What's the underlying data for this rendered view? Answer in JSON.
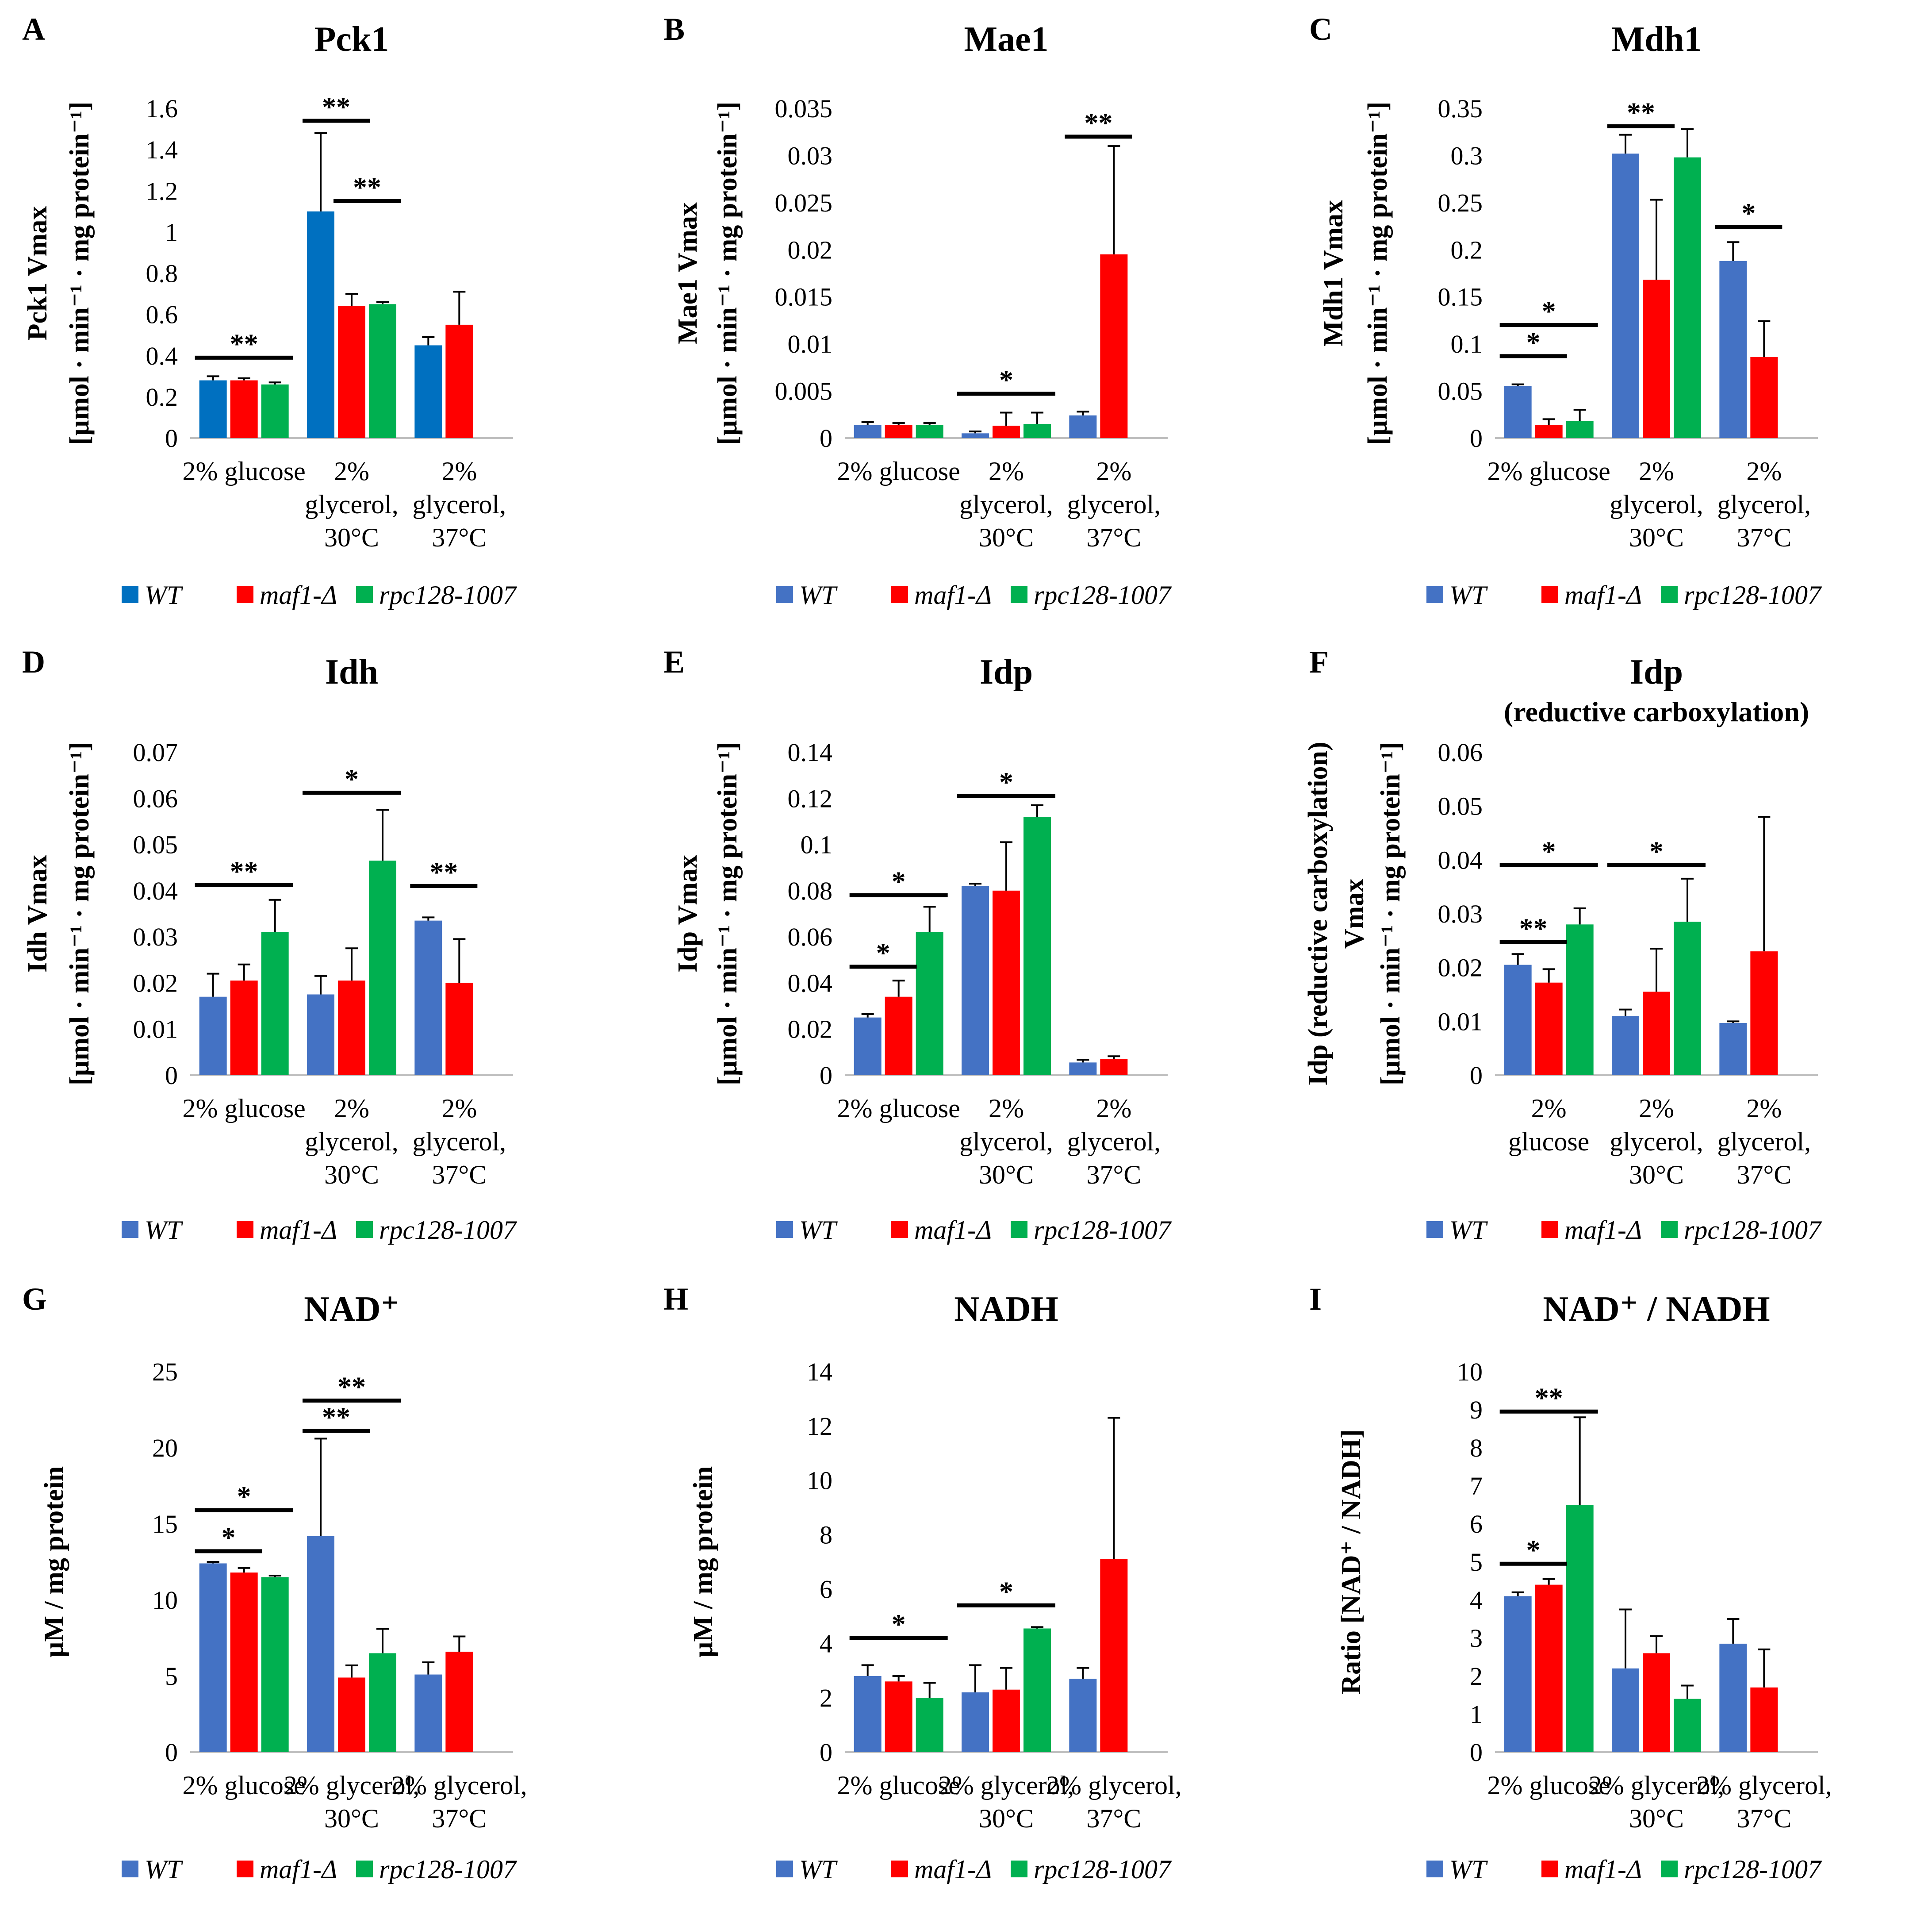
{
  "colors": {
    "WT_blue_A": "#0070c0",
    "WT": "#4472c4",
    "maf1": "#ff0000",
    "rpc128": "#00b050",
    "axis": "#bfbfbf",
    "sig": "#000000"
  },
  "legend": {
    "labels": [
      "WT",
      "maf1-Δ",
      "rpc128-1007"
    ]
  },
  "chart_data": [
    {
      "id": "A",
      "letter": "A",
      "type": "bar",
      "title": "Pck1",
      "subtitle": "",
      "ylabel": [
        "Pck1 Vmax",
        "[µmol · min⁻¹ · mg protein⁻¹]"
      ],
      "ylim": [
        0,
        1.6
      ],
      "yticks": [
        0,
        0.2,
        0.4,
        0.6,
        0.8,
        1,
        1.2,
        1.4,
        1.6
      ],
      "ytick_labels": [
        "0",
        "0.2",
        "0.4",
        "0.6",
        "0.8",
        "1",
        "1.2",
        "1.4",
        "1.6"
      ],
      "categories": [
        [
          "2% glucose"
        ],
        [
          "2%",
          "glycerol,",
          "30°C"
        ],
        [
          "2%",
          "glycerol,",
          "37°C"
        ]
      ],
      "series": [
        {
          "name": "WT",
          "color": "#0070c0",
          "values": [
            0.28,
            1.1,
            0.45
          ],
          "errors": [
            0.02,
            0.38,
            0.04
          ]
        },
        {
          "name": "maf1-Δ",
          "color": "#ff0000",
          "values": [
            0.28,
            0.64,
            0.55
          ],
          "errors": [
            0.01,
            0.06,
            0.16
          ]
        },
        {
          "name": "rpc128-1007",
          "color": "#00b050",
          "values": [
            0.26,
            0.65,
            null
          ],
          "errors": [
            0.01,
            0.01,
            null
          ]
        }
      ],
      "significance": [
        {
          "group": 0,
          "from": 0,
          "to": 2,
          "y": 0.39,
          "label": "**"
        },
        {
          "group": 1,
          "from": 0,
          "to": 1,
          "y": 1.54,
          "label": "**"
        },
        {
          "group": 1,
          "from": 1,
          "to": 2,
          "y": 1.15,
          "label": "**"
        }
      ]
    },
    {
      "id": "B",
      "letter": "B",
      "type": "bar",
      "title": "Mae1",
      "subtitle": "",
      "ylabel": [
        "Mae1 Vmax",
        "[µmol · min⁻¹ · mg protein⁻¹]"
      ],
      "ylim": [
        0,
        0.035
      ],
      "yticks": [
        0,
        0.005,
        0.01,
        0.015,
        0.02,
        0.025,
        0.03,
        0.035
      ],
      "ytick_labels": [
        "0",
        "0.005",
        "0.01",
        "0.015",
        "0.02",
        "0.025",
        "0.03",
        "0.035"
      ],
      "categories": [
        [
          "2% glucose"
        ],
        [
          "2%",
          "glycerol,",
          "30°C"
        ],
        [
          "2%",
          "glycerol,",
          "37°C"
        ]
      ],
      "series": [
        {
          "name": "WT",
          "color": "#4472c4",
          "values": [
            0.0014,
            0.0005,
            0.0024
          ],
          "errors": [
            0.0003,
            0.0002,
            0.0004
          ]
        },
        {
          "name": "maf1-Δ",
          "color": "#ff0000",
          "values": [
            0.0014,
            0.0013,
            0.0195
          ],
          "errors": [
            0.0002,
            0.0014,
            0.0115
          ]
        },
        {
          "name": "rpc128-1007",
          "color": "#00b050",
          "values": [
            0.0014,
            0.0015,
            null
          ],
          "errors": [
            0.0002,
            0.0012,
            null
          ]
        }
      ],
      "significance": [
        {
          "group": 1,
          "from": 0,
          "to": 2,
          "y": 0.0047,
          "label": "*"
        },
        {
          "group": 2,
          "from": 0,
          "to": 1,
          "y": 0.032,
          "label": "**"
        }
      ]
    },
    {
      "id": "C",
      "letter": "C",
      "type": "bar",
      "title": "Mdh1",
      "subtitle": "",
      "ylabel": [
        "Mdh1 Vmax",
        "[µmol · min⁻¹ · mg protein⁻¹]"
      ],
      "ylim": [
        0,
        0.35
      ],
      "yticks": [
        0,
        0.05,
        0.1,
        0.15,
        0.2,
        0.25,
        0.3,
        0.35
      ],
      "ytick_labels": [
        "0",
        "0.05",
        "0.1",
        "0.15",
        "0.2",
        "0.25",
        "0.3",
        "0.35"
      ],
      "categories": [
        [
          "2% glucose"
        ],
        [
          "2%",
          "glycerol,",
          "30°C"
        ],
        [
          "2%",
          "glycerol,",
          "37°C"
        ]
      ],
      "series": [
        {
          "name": "WT",
          "color": "#4472c4",
          "values": [
            0.055,
            0.302,
            0.188
          ],
          "errors": [
            0.002,
            0.02,
            0.02
          ]
        },
        {
          "name": "maf1-Δ",
          "color": "#ff0000",
          "values": [
            0.014,
            0.168,
            0.086
          ],
          "errors": [
            0.006,
            0.085,
            0.038
          ]
        },
        {
          "name": "rpc128-1007",
          "color": "#00b050",
          "values": [
            0.018,
            0.298,
            null
          ],
          "errors": [
            0.012,
            0.03,
            null
          ]
        }
      ],
      "significance": [
        {
          "group": 0,
          "from": 0,
          "to": 1,
          "y": 0.087,
          "label": "*"
        },
        {
          "group": 0,
          "from": 0,
          "to": 2,
          "y": 0.12,
          "label": "*"
        },
        {
          "group": 1,
          "from": 0,
          "to": 1,
          "y": 0.331,
          "label": "**"
        },
        {
          "group": 2,
          "from": 0,
          "to": 1,
          "y": 0.224,
          "label": "*"
        }
      ]
    },
    {
      "id": "D",
      "letter": "D",
      "type": "bar",
      "title": "Idh",
      "subtitle": "",
      "ylabel": [
        "Idh Vmax",
        "[µmol · min⁻¹ · mg protein⁻¹]"
      ],
      "ylim": [
        0,
        0.07
      ],
      "yticks": [
        0,
        0.01,
        0.02,
        0.03,
        0.04,
        0.05,
        0.06,
        0.07
      ],
      "ytick_labels": [
        "0",
        "0.01",
        "0.02",
        "0.03",
        "0.04",
        "0.05",
        "0.06",
        "0.07"
      ],
      "categories": [
        [
          "2% glucose"
        ],
        [
          "2%",
          "glycerol,",
          "30°C"
        ],
        [
          "2%",
          "glycerol,",
          "37°C"
        ]
      ],
      "series": [
        {
          "name": "WT",
          "color": "#4472c4",
          "values": [
            0.017,
            0.0175,
            0.0335
          ],
          "errors": [
            0.005,
            0.004,
            0.0007
          ]
        },
        {
          "name": "maf1-Δ",
          "color": "#ff0000",
          "values": [
            0.0205,
            0.0205,
            0.02
          ],
          "errors": [
            0.0035,
            0.007,
            0.0095
          ]
        },
        {
          "name": "rpc128-1007",
          "color": "#00b050",
          "values": [
            0.031,
            0.0465,
            null
          ],
          "errors": [
            0.007,
            0.011,
            null
          ]
        }
      ],
      "significance": [
        {
          "group": 0,
          "from": 0,
          "to": 2,
          "y": 0.0412,
          "label": "**"
        },
        {
          "group": 1,
          "from": 0,
          "to": 2,
          "y": 0.0612,
          "label": "*"
        },
        {
          "group": 2,
          "from": 0,
          "to": 1,
          "y": 0.041,
          "label": "**"
        }
      ]
    },
    {
      "id": "E",
      "letter": "E",
      "type": "bar",
      "title": "Idp",
      "subtitle": "",
      "ylabel": [
        "Idp Vmax",
        "[µmol · min⁻¹ · mg protein⁻¹]"
      ],
      "ylim": [
        0,
        0.14
      ],
      "yticks": [
        0,
        0.02,
        0.04,
        0.06,
        0.08,
        0.1,
        0.12,
        0.14
      ],
      "ytick_labels": [
        "0",
        "0.02",
        "0.04",
        "0.06",
        "0.08",
        "0.1",
        "0.12",
        "0.14"
      ],
      "categories": [
        [
          "2% glucose"
        ],
        [
          "2%",
          "glycerol,",
          "30°C"
        ],
        [
          "2%",
          "glycerol,",
          "37°C"
        ]
      ],
      "series": [
        {
          "name": "WT",
          "color": "#4472c4",
          "values": [
            0.025,
            0.082,
            0.0055
          ],
          "errors": [
            0.0015,
            0.001,
            0.0012
          ]
        },
        {
          "name": "maf1-Δ",
          "color": "#ff0000",
          "values": [
            0.034,
            0.08,
            0.007
          ],
          "errors": [
            0.007,
            0.021,
            0.0012
          ]
        },
        {
          "name": "rpc128-1007",
          "color": "#00b050",
          "values": [
            0.062,
            0.112,
            null
          ],
          "errors": [
            0.011,
            0.005,
            null
          ]
        }
      ],
      "significance": [
        {
          "group": 0,
          "from": 0,
          "to": 1,
          "y": 0.047,
          "label": "*"
        },
        {
          "group": 0,
          "from": 0,
          "to": 2,
          "y": 0.078,
          "label": "*"
        },
        {
          "group": 1,
          "from": 0,
          "to": 2,
          "y": 0.121,
          "label": "*"
        }
      ]
    },
    {
      "id": "F",
      "letter": "F",
      "type": "bar",
      "title": "Idp",
      "subtitle": "(reductive carboxylation)",
      "ylabel": [
        "Idp (reductive carboxylation)",
        "Vmax",
        "[µmol · min⁻¹ · mg protein⁻¹]"
      ],
      "ylim": [
        0,
        0.06
      ],
      "yticks": [
        0,
        0.01,
        0.02,
        0.03,
        0.04,
        0.05,
        0.06
      ],
      "ytick_labels": [
        "0",
        "0.01",
        "0.02",
        "0.03",
        "0.04",
        "0.05",
        "0.06"
      ],
      "categories": [
        [
          "2%",
          "glucose"
        ],
        [
          "2%",
          "glycerol,",
          "30°C"
        ],
        [
          "2%",
          "glycerol,",
          "37°C"
        ]
      ],
      "series": [
        {
          "name": "WT",
          "color": "#4472c4",
          "values": [
            0.0205,
            0.011,
            0.0097
          ],
          "errors": [
            0.002,
            0.0012,
            0.0003
          ]
        },
        {
          "name": "maf1-Δ",
          "color": "#ff0000",
          "values": [
            0.0172,
            0.0155,
            0.023
          ],
          "errors": [
            0.0025,
            0.008,
            0.025
          ]
        },
        {
          "name": "rpc128-1007",
          "color": "#00b050",
          "values": [
            0.028,
            0.0285,
            null
          ],
          "errors": [
            0.003,
            0.008,
            null
          ]
        }
      ],
      "significance": [
        {
          "group": 0,
          "from": 0,
          "to": 1,
          "y": 0.0247,
          "label": "**"
        },
        {
          "group": 0,
          "from": 0,
          "to": 2,
          "y": 0.039,
          "label": "*"
        },
        {
          "group": 1,
          "from": 0,
          "to": 2,
          "y": 0.039,
          "label": "*"
        }
      ]
    },
    {
      "id": "G",
      "letter": "G",
      "type": "bar",
      "title": "NAD⁺",
      "subtitle": "",
      "ylabel": [
        "µM / mg protein"
      ],
      "ylim": [
        0,
        25
      ],
      "yticks": [
        0,
        5,
        10,
        15,
        20,
        25
      ],
      "ytick_labels": [
        "0",
        "5",
        "10",
        "15",
        "20",
        "25"
      ],
      "categories": [
        [
          "2% glucose"
        ],
        [
          "2% glycerol,",
          "30°C"
        ],
        [
          "2% glycerol,",
          "37°C"
        ]
      ],
      "series": [
        {
          "name": "WT",
          "color": "#4472c4",
          "values": [
            12.4,
            14.2,
            5.1
          ],
          "errors": [
            0.1,
            6.4,
            0.8
          ]
        },
        {
          "name": "maf1-Δ",
          "color": "#ff0000",
          "values": [
            11.8,
            4.9,
            6.6
          ],
          "errors": [
            0.3,
            0.8,
            1.0
          ]
        },
        {
          "name": "rpc128-1007",
          "color": "#00b050",
          "values": [
            11.5,
            6.5,
            null
          ],
          "errors": [
            0.1,
            1.6,
            null
          ]
        }
      ],
      "significance": [
        {
          "group": 0,
          "from": 0,
          "to": 1,
          "y": 13.2,
          "label": "*"
        },
        {
          "group": 0,
          "from": 0,
          "to": 2,
          "y": 15.9,
          "label": "*"
        },
        {
          "group": 1,
          "from": 0,
          "to": 1,
          "y": 21.1,
          "label": "**"
        },
        {
          "group": 1,
          "from": 0,
          "to": 2,
          "y": 23.1,
          "label": "**"
        }
      ]
    },
    {
      "id": "H",
      "letter": "H",
      "type": "bar",
      "title": "NADH",
      "subtitle": "",
      "ylabel": [
        "µM / mg protein"
      ],
      "ylim": [
        0,
        14
      ],
      "yticks": [
        0,
        2,
        4,
        6,
        8,
        10,
        12,
        14
      ],
      "ytick_labels": [
        "0",
        "2",
        "4",
        "6",
        "8",
        "10",
        "12",
        "14"
      ],
      "categories": [
        [
          "2% glucose"
        ],
        [
          "2% glycerol,",
          "30°C"
        ],
        [
          "2% glycerol,",
          "37°C"
        ]
      ],
      "series": [
        {
          "name": "WT",
          "color": "#4472c4",
          "values": [
            2.8,
            2.2,
            2.7
          ],
          "errors": [
            0.4,
            1.0,
            0.4
          ]
        },
        {
          "name": "maf1-Δ",
          "color": "#ff0000",
          "values": [
            2.6,
            2.3,
            7.1
          ],
          "errors": [
            0.2,
            0.8,
            5.2
          ]
        },
        {
          "name": "rpc128-1007",
          "color": "#00b050",
          "values": [
            2.0,
            4.55,
            null
          ],
          "errors": [
            0.55,
            0.05,
            null
          ]
        }
      ],
      "significance": [
        {
          "group": 0,
          "from": 0,
          "to": 2,
          "y": 4.2,
          "label": "*"
        },
        {
          "group": 1,
          "from": 0,
          "to": 2,
          "y": 5.4,
          "label": "*"
        }
      ]
    },
    {
      "id": "I",
      "letter": "I",
      "type": "bar",
      "title": "NAD⁺ / NADH",
      "subtitle": "",
      "ylabel": [
        "Ratio [NAD⁺ / NADH]"
      ],
      "ylim": [
        0,
        10
      ],
      "yticks": [
        0,
        1,
        2,
        3,
        4,
        5,
        6,
        7,
        8,
        9,
        10
      ],
      "ytick_labels": [
        "0",
        "1",
        "2",
        "3",
        "4",
        "5",
        "6",
        "7",
        "8",
        "9",
        "10"
      ],
      "categories": [
        [
          "2% glucose"
        ],
        [
          "2% glycerol,",
          "30°C"
        ],
        [
          "2% glycerol,",
          "37°C"
        ]
      ],
      "series": [
        {
          "name": "WT",
          "color": "#4472c4",
          "values": [
            4.1,
            2.2,
            2.85
          ],
          "errors": [
            0.1,
            1.55,
            0.65
          ]
        },
        {
          "name": "maf1-Δ",
          "color": "#ff0000",
          "values": [
            4.4,
            2.6,
            1.7
          ],
          "errors": [
            0.15,
            0.45,
            1.0
          ]
        },
        {
          "name": "rpc128-1007",
          "color": "#00b050",
          "values": [
            6.5,
            1.4,
            null
          ],
          "errors": [
            2.3,
            0.35,
            null
          ]
        }
      ],
      "significance": [
        {
          "group": 0,
          "from": 0,
          "to": 1,
          "y": 4.95,
          "label": "*"
        },
        {
          "group": 0,
          "from": 0,
          "to": 2,
          "y": 8.95,
          "label": "**"
        }
      ]
    }
  ]
}
